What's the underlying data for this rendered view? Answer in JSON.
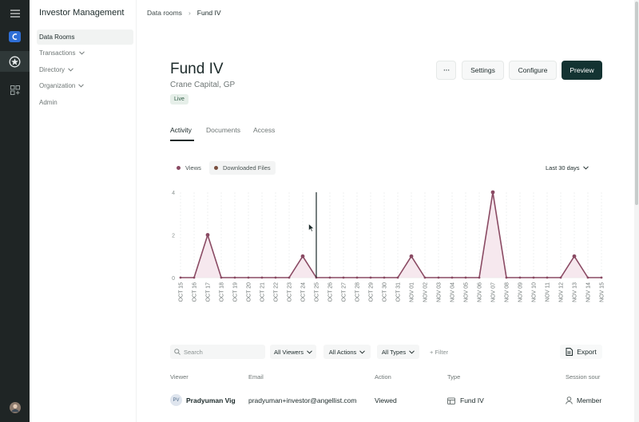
{
  "app": {
    "title": "Investor Management"
  },
  "nav": {
    "items": [
      {
        "label": "Data Rooms",
        "active": true,
        "has_chevron": false
      },
      {
        "label": "Transactions",
        "active": false,
        "has_chevron": true
      },
      {
        "label": "Directory",
        "active": false,
        "has_chevron": true
      },
      {
        "label": "Organization",
        "active": false,
        "has_chevron": true
      },
      {
        "label": "Admin",
        "active": false,
        "has_chevron": false
      }
    ]
  },
  "rail": {
    "icons": [
      "menu-icon",
      "app-logo-icon",
      "investor-app-icon",
      "apps-grid-icon",
      "user-avatar"
    ]
  },
  "breadcrumb": {
    "parent": "Data rooms",
    "current": "Fund IV"
  },
  "header": {
    "title": "Fund IV",
    "subtitle": "Crane Capital, GP",
    "status": "Live",
    "more_label": "···",
    "settings_label": "Settings",
    "configure_label": "Configure",
    "preview_label": "Preview"
  },
  "tabs": [
    {
      "label": "Activity",
      "active": true
    },
    {
      "label": "Documents",
      "active": false
    },
    {
      "label": "Access",
      "active": false
    }
  ],
  "legend": {
    "views_label": "Views",
    "downloads_label": "Downloaded Files",
    "range_label": "Last 30 days"
  },
  "colors": {
    "views": "#8a4a63",
    "downloads": "#7a4f3f",
    "primary": "#133332",
    "area_fill": "#f5e6ec"
  },
  "chart_data": {
    "type": "area",
    "categories": [
      "OCT 15",
      "OCT 16",
      "OCT 17",
      "OCT 18",
      "OCT 19",
      "OCT 20",
      "OCT 21",
      "OCT 22",
      "OCT 23",
      "OCT 24",
      "OCT 25",
      "OCT 26",
      "OCT 27",
      "OCT 28",
      "OCT 29",
      "OCT 30",
      "OCT 31",
      "NOV 01",
      "NOV 02",
      "NOV 03",
      "NOV 04",
      "NOV 05",
      "NOV 06",
      "NOV 07",
      "NOV 08",
      "NOV 09",
      "NOV 10",
      "NOV 11",
      "NOV 12",
      "NOV 13",
      "NOV 14",
      "NOV 15"
    ],
    "series": [
      {
        "name": "Views",
        "values": [
          0,
          0,
          2,
          0,
          0,
          0,
          0,
          0,
          0,
          1,
          0,
          0,
          0,
          0,
          0,
          0,
          0,
          1,
          0,
          0,
          0,
          0,
          0,
          4,
          0,
          0,
          0,
          0,
          0,
          1,
          0,
          0
        ]
      }
    ],
    "yticks": [
      0,
      2,
      4
    ],
    "ylim": [
      0,
      4
    ],
    "grid": "vertical dashed",
    "cursor_category": "OCT 25"
  },
  "filters": {
    "search_placeholder": "Search",
    "viewers_label": "All Viewers",
    "actions_label": "All Actions",
    "types_label": "All Types",
    "filter_label": "+ Filter",
    "export_label": "Export"
  },
  "table": {
    "headers": [
      "Viewer",
      "Email",
      "Action",
      "Type",
      "Session sour"
    ],
    "rows": [
      {
        "initials": "PV",
        "viewer": "Pradyuman Vig",
        "email": "pradyuman+investor@angellist.com",
        "action": "Viewed",
        "type": "Fund IV",
        "source": "Member"
      }
    ]
  }
}
